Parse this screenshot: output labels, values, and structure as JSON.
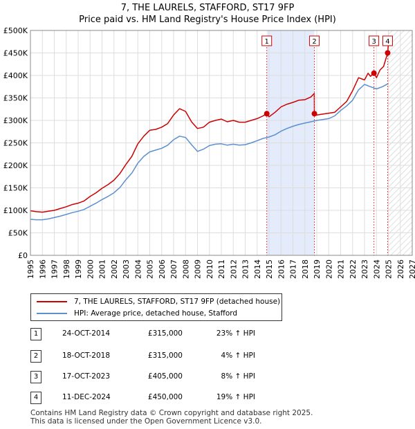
{
  "chart_data": {
    "type": "line",
    "title": "7, THE LAURELS, STAFFORD, ST17 9FP",
    "subtitle": "Price paid vs. HM Land Registry's House Price Index (HPI)",
    "xlim": [
      1995,
      2027
    ],
    "ylim": [
      0,
      500000
    ],
    "x_ticks": [
      1995,
      1996,
      1997,
      1998,
      1999,
      2000,
      2001,
      2002,
      2003,
      2004,
      2005,
      2006,
      2007,
      2008,
      2009,
      2010,
      2011,
      2012,
      2013,
      2014,
      2015,
      2016,
      2017,
      2018,
      2019,
      2020,
      2021,
      2022,
      2023,
      2024,
      2025,
      2026,
      2027
    ],
    "y_ticks": [
      {
        "value": 0,
        "label": "£0"
      },
      {
        "value": 50000,
        "label": "£50K"
      },
      {
        "value": 100000,
        "label": "£100K"
      },
      {
        "value": 150000,
        "label": "£150K"
      },
      {
        "value": 200000,
        "label": "£200K"
      },
      {
        "value": 250000,
        "label": "£250K"
      },
      {
        "value": 300000,
        "label": "£300K"
      },
      {
        "value": 350000,
        "label": "£350K"
      },
      {
        "value": 400000,
        "label": "£400K"
      },
      {
        "value": 450000,
        "label": "£450K"
      },
      {
        "value": 500000,
        "label": "£500K"
      }
    ],
    "grid": true,
    "shaded_ranges": [
      [
        2014.81,
        2018.8
      ]
    ],
    "hatched_from": 2025.0,
    "series": [
      {
        "name": "7, THE LAURELS, STAFFORD, ST17 9FP (detached house)",
        "color": "#cc0000",
        "x": [
          1995.0,
          1995.5,
          1996.0,
          1996.5,
          1997.0,
          1997.5,
          1998.0,
          1998.5,
          1999.0,
          1999.5,
          2000.0,
          2000.5,
          2001.0,
          2001.5,
          2002.0,
          2002.5,
          2003.0,
          2003.5,
          2004.0,
          2004.5,
          2005.0,
          2005.5,
          2006.0,
          2006.5,
          2007.0,
          2007.5,
          2008.0,
          2008.5,
          2009.0,
          2009.5,
          2010.0,
          2010.5,
          2011.0,
          2011.5,
          2012.0,
          2012.5,
          2013.0,
          2013.5,
          2014.0,
          2014.5,
          2014.81,
          2015.0,
          2015.5,
          2016.0,
          2016.5,
          2017.0,
          2017.5,
          2018.0,
          2018.5,
          2018.79,
          2018.8,
          2019.0,
          2019.5,
          2020.0,
          2020.5,
          2021.0,
          2021.5,
          2022.0,
          2022.5,
          2023.0,
          2023.3,
          2023.5,
          2023.79,
          2024.0,
          2024.3,
          2024.6,
          2024.94,
          2025.0
        ],
        "values": [
          99000,
          97000,
          96000,
          98000,
          100000,
          104000,
          108000,
          113000,
          116000,
          121000,
          131000,
          139000,
          149000,
          157000,
          167000,
          182000,
          202000,
          220000,
          248000,
          265000,
          278000,
          280000,
          285000,
          293000,
          312000,
          326000,
          320000,
          297000,
          282000,
          285000,
          296000,
          300000,
          303000,
          297000,
          300000,
          296000,
          296000,
          300000,
          304000,
          310000,
          315000,
          308000,
          318000,
          330000,
          336000,
          340000,
          345000,
          346000,
          352000,
          360000,
          315000,
          312000,
          314000,
          316000,
          318000,
          330000,
          342000,
          366000,
          395000,
          390000,
          405000,
          398000,
          405000,
          395000,
          412000,
          420000,
          450000,
          470000
        ]
      },
      {
        "name": "HPI: Average price, detached house, Stafford",
        "color": "#5b8fd0",
        "x": [
          1995.0,
          1995.5,
          1996.0,
          1996.5,
          1997.0,
          1997.5,
          1998.0,
          1998.5,
          1999.0,
          1999.5,
          2000.0,
          2000.5,
          2001.0,
          2001.5,
          2002.0,
          2002.5,
          2003.0,
          2003.5,
          2004.0,
          2004.5,
          2005.0,
          2005.5,
          2006.0,
          2006.5,
          2007.0,
          2007.5,
          2008.0,
          2008.5,
          2009.0,
          2009.5,
          2010.0,
          2010.5,
          2011.0,
          2011.5,
          2012.0,
          2012.5,
          2013.0,
          2013.5,
          2014.0,
          2014.5,
          2015.0,
          2015.5,
          2016.0,
          2016.5,
          2017.0,
          2017.5,
          2018.0,
          2018.5,
          2019.0,
          2019.5,
          2020.0,
          2020.5,
          2021.0,
          2021.5,
          2022.0,
          2022.5,
          2023.0,
          2023.5,
          2024.0,
          2024.5,
          2025.0
        ],
        "values": [
          80000,
          79000,
          79000,
          81000,
          84000,
          87000,
          91000,
          95000,
          98000,
          102000,
          109000,
          116000,
          124000,
          131000,
          139000,
          151000,
          168000,
          183000,
          205000,
          220000,
          230000,
          234000,
          238000,
          245000,
          257000,
          265000,
          262000,
          246000,
          231000,
          236000,
          244000,
          247000,
          248000,
          245000,
          247000,
          245000,
          246000,
          250000,
          255000,
          260000,
          263000,
          268000,
          276000,
          282000,
          287000,
          291000,
          294000,
          297000,
          300000,
          302000,
          304000,
          310000,
          322000,
          332000,
          345000,
          368000,
          380000,
          375000,
          370000,
          375000,
          382000
        ]
      }
    ],
    "markers": [
      {
        "id": "1",
        "x": 2014.81,
        "y": 315000
      },
      {
        "id": "2",
        "x": 2018.8,
        "y": 315000
      },
      {
        "id": "3",
        "x": 2023.79,
        "y": 405000
      },
      {
        "id": "4",
        "x": 2024.94,
        "y": 450000
      }
    ]
  },
  "legend": {
    "property_label": "7, THE LAURELS, STAFFORD, ST17 9FP (detached house)",
    "hpi_label": "HPI: Average price, detached house, Stafford"
  },
  "transactions": [
    {
      "num": "1",
      "date": "24-OCT-2014",
      "price": "£315,000",
      "hpi": "23% ↑ HPI"
    },
    {
      "num": "2",
      "date": "18-OCT-2018",
      "price": "£315,000",
      "hpi": "4% ↑ HPI"
    },
    {
      "num": "3",
      "date": "17-OCT-2023",
      "price": "£405,000",
      "hpi": "8% ↑ HPI"
    },
    {
      "num": "4",
      "date": "11-DEC-2024",
      "price": "£450,000",
      "hpi": "19% ↑ HPI"
    }
  ],
  "footer": {
    "line1": "Contains HM Land Registry data © Crown copyright and database right 2025.",
    "line2": "This data is licensed under the Open Government Licence v3.0."
  }
}
